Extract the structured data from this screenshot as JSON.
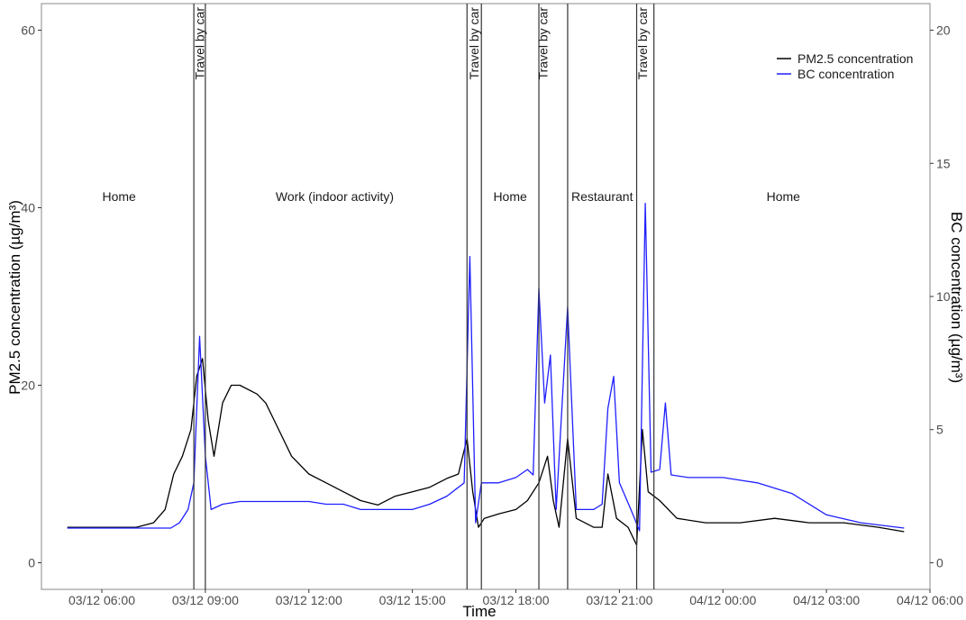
{
  "chart_data": {
    "type": "line",
    "xlabel": "Time",
    "ylabel_left": "PM2.5 concentration (µg/m³)",
    "ylabel_right": "BC concentration (µg/m³)",
    "x_range": [
      "03/12 04:15",
      "04/12 06:00"
    ],
    "x_ticks": [
      {
        "t": "03/12 06:00",
        "label": "03/12 06:00"
      },
      {
        "t": "03/12 09:00",
        "label": "03/12 09:00"
      },
      {
        "t": "03/12 12:00",
        "label": "03/12 12:00"
      },
      {
        "t": "03/12 15:00",
        "label": "03/12 15:00"
      },
      {
        "t": "03/12 18:00",
        "label": "03/12 18:00"
      },
      {
        "t": "03/12 21:00",
        "label": "03/12 21:00"
      },
      {
        "t": "04/12 00:00",
        "label": "04/12 00:00"
      },
      {
        "t": "04/12 03:00",
        "label": "04/12 03:00"
      },
      {
        "t": "04/12 06:00",
        "label": "04/12 06:00"
      }
    ],
    "y_left": {
      "range": [
        -3,
        63
      ],
      "ticks": [
        0,
        20,
        40,
        60
      ]
    },
    "y_right": {
      "range": [
        -1,
        21
      ],
      "ticks": [
        0,
        5,
        10,
        15,
        20
      ]
    },
    "grid": false,
    "legend_position": "top-right",
    "legend": [
      {
        "name": "PM2.5 concentration",
        "color": "#000000"
      },
      {
        "name": "BC concentration",
        "color": "#1f1fff"
      }
    ],
    "phase_boundaries": [
      "03/12 08:40",
      "03/12 09:00",
      "03/12 16:35",
      "03/12 17:00",
      "03/12 18:40",
      "03/12 19:30",
      "03/12 21:30",
      "03/12 22:00"
    ],
    "phases": [
      {
        "label": "Home",
        "center": "03/12 06:30",
        "rotated": false
      },
      {
        "label": "Travel by car",
        "center": "03/12 08:50",
        "rotated": true
      },
      {
        "label": "Work (indoor activity)",
        "center": "03/12 12:45",
        "rotated": false
      },
      {
        "label": "Travel by car",
        "center": "03/12 16:47",
        "rotated": true
      },
      {
        "label": "Home",
        "center": "03/12 17:50",
        "rotated": false
      },
      {
        "label": "Travel by car",
        "center": "03/12 18:47",
        "rotated": true
      },
      {
        "label": "Restaurant",
        "center": "03/12 20:30",
        "rotated": false
      },
      {
        "label": "Travel by car",
        "center": "03/12 21:40",
        "rotated": true
      },
      {
        "label": "Home",
        "center": "04/12 01:45",
        "rotated": false
      }
    ],
    "series": [
      {
        "name": "PM2.5 concentration",
        "axis": "left",
        "color": "#000000",
        "points": [
          [
            "03/12 05:00",
            4
          ],
          [
            "03/12 07:00",
            4
          ],
          [
            "03/12 07:30",
            4.5
          ],
          [
            "03/12 07:50",
            6
          ],
          [
            "03/12 08:05",
            10
          ],
          [
            "03/12 08:20",
            12
          ],
          [
            "03/12 08:35",
            15
          ],
          [
            "03/12 08:45",
            21
          ],
          [
            "03/12 08:55",
            23
          ],
          [
            "03/12 09:05",
            16
          ],
          [
            "03/12 09:15",
            12
          ],
          [
            "03/12 09:30",
            18
          ],
          [
            "03/12 09:45",
            20
          ],
          [
            "03/12 10:00",
            20
          ],
          [
            "03/12 10:30",
            19
          ],
          [
            "03/12 10:45",
            18
          ],
          [
            "03/12 11:00",
            16
          ],
          [
            "03/12 11:30",
            12
          ],
          [
            "03/12 12:00",
            10
          ],
          [
            "03/12 12:30",
            9
          ],
          [
            "03/12 13:00",
            8
          ],
          [
            "03/12 13:30",
            7
          ],
          [
            "03/12 14:00",
            6.5
          ],
          [
            "03/12 14:30",
            7.5
          ],
          [
            "03/12 15:00",
            8
          ],
          [
            "03/12 15:30",
            8.5
          ],
          [
            "03/12 16:00",
            9.5
          ],
          [
            "03/12 16:20",
            10
          ],
          [
            "03/12 16:35",
            14
          ],
          [
            "03/12 16:45",
            8
          ],
          [
            "03/12 16:55",
            4
          ],
          [
            "03/12 17:05",
            5
          ],
          [
            "03/12 17:30",
            5.5
          ],
          [
            "03/12 18:00",
            6
          ],
          [
            "03/12 18:20",
            7
          ],
          [
            "03/12 18:40",
            9
          ],
          [
            "03/12 18:55",
            12
          ],
          [
            "03/12 19:05",
            7
          ],
          [
            "03/12 19:15",
            4
          ],
          [
            "03/12 19:30",
            14
          ],
          [
            "03/12 19:45",
            5
          ],
          [
            "03/12 20:15",
            4
          ],
          [
            "03/12 20:30",
            4
          ],
          [
            "03/12 20:40",
            10
          ],
          [
            "03/12 20:55",
            5
          ],
          [
            "03/12 21:15",
            4
          ],
          [
            "03/12 21:30",
            2
          ],
          [
            "03/12 21:40",
            15
          ],
          [
            "03/12 21:50",
            8
          ],
          [
            "03/12 22:10",
            7
          ],
          [
            "03/12 22:40",
            5
          ],
          [
            "03/12 23:30",
            4.5
          ],
          [
            "04/12 00:30",
            4.5
          ],
          [
            "04/12 01:30",
            5
          ],
          [
            "04/12 02:30",
            4.5
          ],
          [
            "04/12 03:30",
            4.5
          ],
          [
            "04/12 04:30",
            4
          ],
          [
            "04/12 05:15",
            3.5
          ]
        ]
      },
      {
        "name": "BC concentration",
        "axis": "right",
        "color": "#1f1fff",
        "points": [
          [
            "03/12 05:00",
            1.3
          ],
          [
            "03/12 07:30",
            1.3
          ],
          [
            "03/12 08:00",
            1.3
          ],
          [
            "03/12 08:15",
            1.5
          ],
          [
            "03/12 08:30",
            2
          ],
          [
            "03/12 08:40",
            3
          ],
          [
            "03/12 08:50",
            8.5
          ],
          [
            "03/12 09:00",
            4
          ],
          [
            "03/12 09:10",
            2
          ],
          [
            "03/12 09:30",
            2.2
          ],
          [
            "03/12 10:00",
            2.3
          ],
          [
            "03/12 10:30",
            2.3
          ],
          [
            "03/12 11:00",
            2.3
          ],
          [
            "03/12 12:00",
            2.3
          ],
          [
            "03/12 12:30",
            2.2
          ],
          [
            "03/12 13:00",
            2.2
          ],
          [
            "03/12 13:30",
            2
          ],
          [
            "03/12 14:00",
            2
          ],
          [
            "03/12 15:00",
            2
          ],
          [
            "03/12 15:30",
            2.2
          ],
          [
            "03/12 16:00",
            2.5
          ],
          [
            "03/12 16:30",
            3
          ],
          [
            "03/12 16:40",
            11.5
          ],
          [
            "03/12 16:50",
            1.5
          ],
          [
            "03/12 17:00",
            3
          ],
          [
            "03/12 17:30",
            3
          ],
          [
            "03/12 18:00",
            3.2
          ],
          [
            "03/12 18:20",
            3.5
          ],
          [
            "03/12 18:30",
            3.3
          ],
          [
            "03/12 18:40",
            10.3
          ],
          [
            "03/12 18:50",
            6
          ],
          [
            "03/12 19:00",
            7.8
          ],
          [
            "03/12 19:10",
            2
          ],
          [
            "03/12 19:30",
            9.6
          ],
          [
            "03/12 19:45",
            2
          ],
          [
            "03/12 20:15",
            2
          ],
          [
            "03/12 20:30",
            2.2
          ],
          [
            "03/12 20:40",
            5.8
          ],
          [
            "03/12 20:50",
            7
          ],
          [
            "03/12 21:00",
            3
          ],
          [
            "03/12 21:20",
            2
          ],
          [
            "03/12 21:35",
            1.2
          ],
          [
            "03/12 21:45",
            13.5
          ],
          [
            "03/12 21:55",
            3.4
          ],
          [
            "03/12 22:10",
            3.5
          ],
          [
            "03/12 22:20",
            6
          ],
          [
            "03/12 22:30",
            3.3
          ],
          [
            "03/12 23:00",
            3.2
          ],
          [
            "04/12 00:00",
            3.2
          ],
          [
            "04/12 00:30",
            3.1
          ],
          [
            "04/12 01:00",
            3
          ],
          [
            "04/12 02:00",
            2.6
          ],
          [
            "04/12 03:00",
            1.8
          ],
          [
            "04/12 04:00",
            1.5
          ],
          [
            "04/12 05:15",
            1.3
          ]
        ]
      }
    ]
  }
}
